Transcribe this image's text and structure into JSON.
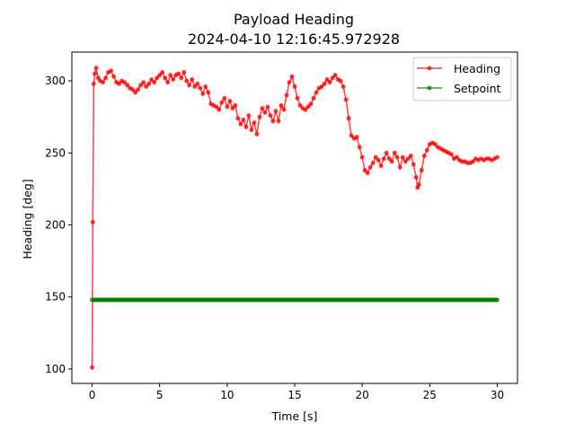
{
  "chart_data": {
    "type": "line",
    "title": "Payload Heading",
    "subtitle": "2024-04-10 12:16:45.972928",
    "xlabel": "Time [s]",
    "ylabel": "Heading [deg]",
    "xlim": [
      -1.5,
      31.5
    ],
    "ylim": [
      90,
      320
    ],
    "xticks": [
      0,
      5,
      10,
      15,
      20,
      25,
      30
    ],
    "yticks": [
      100,
      150,
      200,
      250,
      300
    ],
    "grid": false,
    "legend_position": "top-right",
    "series": [
      {
        "name": "Heading",
        "color": "#ff0000",
        "marker": "circle",
        "points": [
          [
            0.0,
            101
          ],
          [
            0.05,
            202
          ],
          [
            0.12,
            298
          ],
          [
            0.2,
            305
          ],
          [
            0.3,
            309
          ],
          [
            0.45,
            302
          ],
          [
            0.6,
            300
          ],
          [
            0.8,
            299
          ],
          [
            1.0,
            302
          ],
          [
            1.2,
            306
          ],
          [
            1.4,
            307
          ],
          [
            1.6,
            303
          ],
          [
            1.8,
            299
          ],
          [
            2.0,
            298
          ],
          [
            2.2,
            300
          ],
          [
            2.4,
            299
          ],
          [
            2.6,
            297
          ],
          [
            2.8,
            295
          ],
          [
            3.0,
            294
          ],
          [
            3.2,
            292
          ],
          [
            3.4,
            294
          ],
          [
            3.6,
            297
          ],
          [
            3.8,
            299
          ],
          [
            4.0,
            296
          ],
          [
            4.2,
            298
          ],
          [
            4.4,
            301
          ],
          [
            4.6,
            299
          ],
          [
            4.8,
            302
          ],
          [
            5.0,
            304
          ],
          [
            5.2,
            306
          ],
          [
            5.4,
            302
          ],
          [
            5.6,
            299
          ],
          [
            5.8,
            304
          ],
          [
            6.0,
            301
          ],
          [
            6.2,
            304
          ],
          [
            6.4,
            305
          ],
          [
            6.6,
            302
          ],
          [
            6.8,
            306
          ],
          [
            7.0,
            300
          ],
          [
            7.2,
            297
          ],
          [
            7.4,
            301
          ],
          [
            7.6,
            296
          ],
          [
            7.8,
            298
          ],
          [
            8.0,
            295
          ],
          [
            8.2,
            291
          ],
          [
            8.4,
            296
          ],
          [
            8.6,
            292
          ],
          [
            8.8,
            284
          ],
          [
            9.0,
            283
          ],
          [
            9.2,
            282
          ],
          [
            9.4,
            280
          ],
          [
            9.6,
            285
          ],
          [
            9.8,
            288
          ],
          [
            10.0,
            282
          ],
          [
            10.2,
            286
          ],
          [
            10.4,
            281
          ],
          [
            10.6,
            283
          ],
          [
            10.8,
            274
          ],
          [
            11.0,
            270
          ],
          [
            11.2,
            273
          ],
          [
            11.4,
            268
          ],
          [
            11.6,
            276
          ],
          [
            11.8,
            266
          ],
          [
            12.0,
            271
          ],
          [
            12.2,
            263
          ],
          [
            12.4,
            275
          ],
          [
            12.6,
            281
          ],
          [
            12.8,
            278
          ],
          [
            13.0,
            282
          ],
          [
            13.2,
            276
          ],
          [
            13.4,
            272
          ],
          [
            13.6,
            279
          ],
          [
            13.8,
            272
          ],
          [
            14.0,
            283
          ],
          [
            14.2,
            280
          ],
          [
            14.4,
            290
          ],
          [
            14.6,
            299
          ],
          [
            14.8,
            303
          ],
          [
            15.0,
            296
          ],
          [
            15.2,
            288
          ],
          [
            15.4,
            283
          ],
          [
            15.6,
            281
          ],
          [
            15.8,
            280
          ],
          [
            16.0,
            282
          ],
          [
            16.2,
            284
          ],
          [
            16.4,
            288
          ],
          [
            16.6,
            292
          ],
          [
            16.8,
            295
          ],
          [
            17.0,
            296
          ],
          [
            17.2,
            298
          ],
          [
            17.4,
            301
          ],
          [
            17.6,
            299
          ],
          [
            17.8,
            302
          ],
          [
            18.0,
            304
          ],
          [
            18.2,
            301
          ],
          [
            18.4,
            300
          ],
          [
            18.6,
            296
          ],
          [
            18.8,
            287
          ],
          [
            19.0,
            274
          ],
          [
            19.2,
            262
          ],
          [
            19.4,
            260
          ],
          [
            19.6,
            261
          ],
          [
            19.8,
            254
          ],
          [
            20.0,
            247
          ],
          [
            20.2,
            238
          ],
          [
            20.4,
            236
          ],
          [
            20.6,
            240
          ],
          [
            20.8,
            243
          ],
          [
            21.0,
            247
          ],
          [
            21.2,
            245
          ],
          [
            21.4,
            241
          ],
          [
            21.6,
            246
          ],
          [
            21.8,
            250
          ],
          [
            22.0,
            246
          ],
          [
            22.2,
            244
          ],
          [
            22.4,
            250
          ],
          [
            22.6,
            247
          ],
          [
            22.8,
            240
          ],
          [
            23.0,
            247
          ],
          [
            23.2,
            244
          ],
          [
            23.4,
            246
          ],
          [
            23.6,
            248
          ],
          [
            23.8,
            242
          ],
          [
            24.0,
            233
          ],
          [
            24.1,
            226
          ],
          [
            24.2,
            228
          ],
          [
            24.4,
            238
          ],
          [
            24.6,
            248
          ],
          [
            24.8,
            252
          ],
          [
            25.0,
            256
          ],
          [
            25.2,
            257
          ],
          [
            25.4,
            256
          ],
          [
            25.6,
            254
          ],
          [
            25.8,
            253
          ],
          [
            26.0,
            252
          ],
          [
            26.2,
            251
          ],
          [
            26.4,
            250
          ],
          [
            26.6,
            249
          ],
          [
            26.8,
            246
          ],
          [
            27.0,
            247
          ],
          [
            27.2,
            245
          ],
          [
            27.4,
            244
          ],
          [
            27.6,
            244
          ],
          [
            27.8,
            243
          ],
          [
            28.0,
            243
          ],
          [
            28.2,
            244
          ],
          [
            28.4,
            246
          ],
          [
            28.6,
            245
          ],
          [
            28.8,
            246
          ],
          [
            29.0,
            245
          ],
          [
            29.2,
            246
          ],
          [
            29.4,
            246
          ],
          [
            29.6,
            245
          ],
          [
            29.8,
            246
          ],
          [
            30.0,
            247
          ]
        ]
      },
      {
        "name": "Setpoint",
        "color": "#008000",
        "marker": "circle",
        "points": [
          [
            0.0,
            148
          ],
          [
            30.0,
            148
          ]
        ]
      }
    ]
  }
}
